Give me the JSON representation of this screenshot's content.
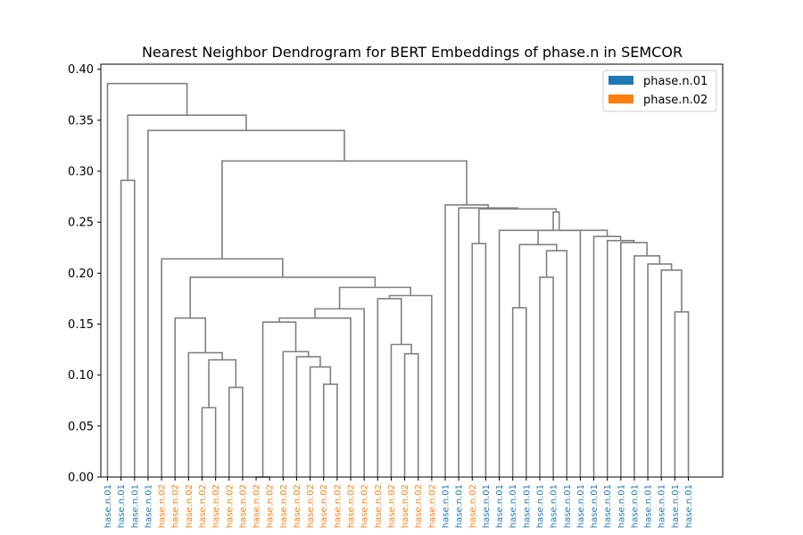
{
  "chart_data": {
    "type": "dendrogram",
    "title": "Nearest Neighbor Dendrogram for BERT Embeddings of phase.n in SEMCOR",
    "ylim": [
      0,
      0.405
    ],
    "yticks": [
      0.0,
      0.05,
      0.1,
      0.15,
      0.2,
      0.25,
      0.3,
      0.35,
      0.4
    ],
    "ytick_labels": [
      "0.00",
      "0.05",
      "0.10",
      "0.15",
      "0.20",
      "0.25",
      "0.30",
      "0.35",
      "0.40"
    ],
    "link_color": "#808080",
    "legend": {
      "placement": "top-right",
      "entries": [
        {
          "label": "phase.n.01",
          "color": "#1f77b4"
        },
        {
          "label": "phase.n.02",
          "color": "#ff7f0e"
        }
      ]
    },
    "leaves": [
      {
        "text": "hase.n.01",
        "sense": "phase.n.01"
      },
      {
        "text": "hase.n.01",
        "sense": "phase.n.01"
      },
      {
        "text": "hase.n.01",
        "sense": "phase.n.01"
      },
      {
        "text": "hase.n.01",
        "sense": "phase.n.01"
      },
      {
        "text": "hase.n.02",
        "sense": "phase.n.02"
      },
      {
        "text": "hase.n.02",
        "sense": "phase.n.02"
      },
      {
        "text": "hase.n.02",
        "sense": "phase.n.02"
      },
      {
        "text": "hase.n.02",
        "sense": "phase.n.02"
      },
      {
        "text": "hase.n.02",
        "sense": "phase.n.02"
      },
      {
        "text": "hase.n.02",
        "sense": "phase.n.02"
      },
      {
        "text": "hase.n.02",
        "sense": "phase.n.02"
      },
      {
        "text": "hase.n.02",
        "sense": "phase.n.02"
      },
      {
        "text": "hase.n.02",
        "sense": "phase.n.02"
      },
      {
        "text": "hase.n.02",
        "sense": "phase.n.02"
      },
      {
        "text": "hase.n.02",
        "sense": "phase.n.02"
      },
      {
        "text": "hase.n.02",
        "sense": "phase.n.02"
      },
      {
        "text": "hase.n.02",
        "sense": "phase.n.02"
      },
      {
        "text": "hase.n.02",
        "sense": "phase.n.02"
      },
      {
        "text": "hase.n.02",
        "sense": "phase.n.02"
      },
      {
        "text": "hase.n.02",
        "sense": "phase.n.02"
      },
      {
        "text": "hase.n.02",
        "sense": "phase.n.02"
      },
      {
        "text": "hase.n.02",
        "sense": "phase.n.02"
      },
      {
        "text": "hase.n.02",
        "sense": "phase.n.02"
      },
      {
        "text": "hase.n.02",
        "sense": "phase.n.02"
      },
      {
        "text": "hase.n.02",
        "sense": "phase.n.02"
      },
      {
        "text": "hase.n.01",
        "sense": "phase.n.01"
      },
      {
        "text": "hase.n.01",
        "sense": "phase.n.01"
      },
      {
        "text": "hase.n.02",
        "sense": "phase.n.02"
      },
      {
        "text": "hase.n.01",
        "sense": "phase.n.01"
      },
      {
        "text": "hase.n.01",
        "sense": "phase.n.01"
      },
      {
        "text": "hase.n.01",
        "sense": "phase.n.01"
      },
      {
        "text": "hase.n.01",
        "sense": "phase.n.01"
      },
      {
        "text": "hase.n.01",
        "sense": "phase.n.01"
      },
      {
        "text": "hase.n.01",
        "sense": "phase.n.01"
      },
      {
        "text": "hase.n.01",
        "sense": "phase.n.01"
      },
      {
        "text": "hase.n.01",
        "sense": "phase.n.01"
      },
      {
        "text": "hase.n.01",
        "sense": "phase.n.01"
      },
      {
        "text": "hase.n.01",
        "sense": "phase.n.01"
      },
      {
        "text": "hase.n.01",
        "sense": "phase.n.01"
      },
      {
        "text": "hase.n.01",
        "sense": "phase.n.01"
      },
      {
        "text": "hase.n.01",
        "sense": "phase.n.01"
      },
      {
        "text": "hase.n.01",
        "sense": "phase.n.01"
      },
      {
        "text": "hase.n.01",
        "sense": "phase.n.01"
      },
      {
        "text": "hase.n.01",
        "sense": "phase.n.01"
      }
    ],
    "merges": [
      [
        11,
        12,
        0.0
      ],
      [
        7,
        8,
        0.068
      ],
      [
        9,
        10,
        0.088
      ],
      [
        45,
        46,
        0.115
      ],
      [
        6,
        47,
        0.122
      ],
      [
        5,
        48,
        0.156
      ],
      [
        16,
        17,
        0.091
      ],
      [
        15,
        50,
        0.108
      ],
      [
        14,
        51,
        0.118
      ],
      [
        13,
        52,
        0.123
      ],
      [
        44,
        53,
        0.152
      ],
      [
        54,
        18,
        0.156
      ],
      [
        19,
        55,
        0.165
      ],
      [
        22,
        23,
        0.121
      ],
      [
        21,
        57,
        0.13
      ],
      [
        20,
        58,
        0.175
      ],
      [
        59,
        24,
        0.178
      ],
      [
        56,
        60,
        0.186
      ],
      [
        49,
        61,
        0.196
      ],
      [
        4,
        62,
        0.214
      ],
      [
        27,
        28,
        0.229
      ],
      [
        30,
        31,
        0.166
      ],
      [
        32,
        33,
        0.196
      ],
      [
        34,
        66,
        0.222
      ],
      [
        65,
        67,
        0.228
      ],
      [
        42,
        43,
        0.162
      ],
      [
        41,
        69,
        0.203
      ],
      [
        40,
        70,
        0.209
      ],
      [
        39,
        71,
        0.217
      ],
      [
        38,
        72,
        0.23
      ],
      [
        37,
        73,
        0.232
      ],
      [
        36,
        74,
        0.236
      ],
      [
        35,
        68,
        0.242
      ],
      [
        29,
        75,
        0.242
      ],
      [
        76,
        77,
        0.26
      ],
      [
        64,
        78,
        0.263
      ],
      [
        26,
        79,
        0.264
      ],
      [
        25,
        80,
        0.267
      ],
      [
        63,
        81,
        0.31
      ],
      [
        3,
        82,
        0.34
      ],
      [
        1,
        2,
        0.291
      ],
      [
        83,
        84,
        0.355
      ],
      [
        0,
        85,
        0.386
      ]
    ]
  }
}
